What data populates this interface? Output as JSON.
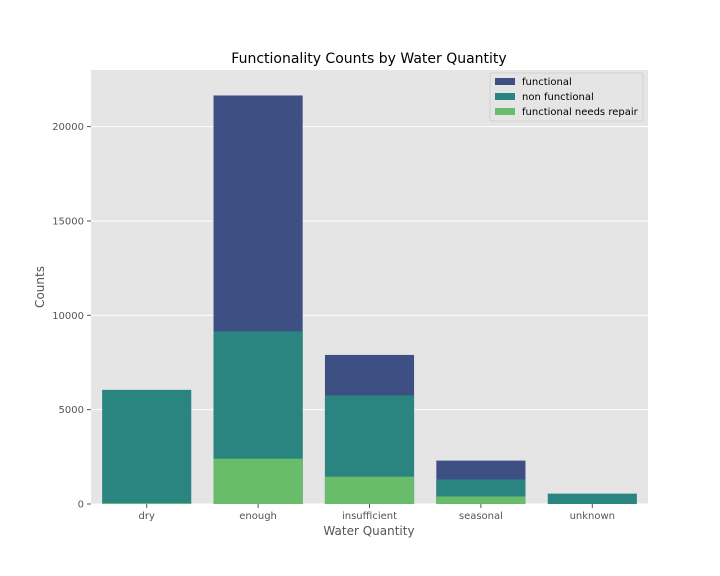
{
  "chart_data": {
    "type": "bar",
    "stacked": "overlay",
    "title": "Functionality Counts by Water Quantity",
    "xlabel": "Water Quantity",
    "ylabel": "Counts",
    "categories": [
      "dry",
      "enough",
      "insufficient",
      "seasonal",
      "unknown"
    ],
    "ylim": [
      0,
      23000
    ],
    "yticks": [
      0,
      5000,
      10000,
      15000,
      20000
    ],
    "grid": true,
    "legend_position": "top-right",
    "series": [
      {
        "name": "functional",
        "color": "#3e4f84",
        "values": [
          0,
          21650,
          7900,
          2300,
          0
        ]
      },
      {
        "name": "non functional",
        "color": "#2a8580",
        "values": [
          6050,
          9150,
          5750,
          1300,
          550
        ]
      },
      {
        "name": "functional needs repair",
        "color": "#69bd6a",
        "values": [
          50,
          2400,
          1450,
          400,
          0
        ]
      }
    ]
  }
}
